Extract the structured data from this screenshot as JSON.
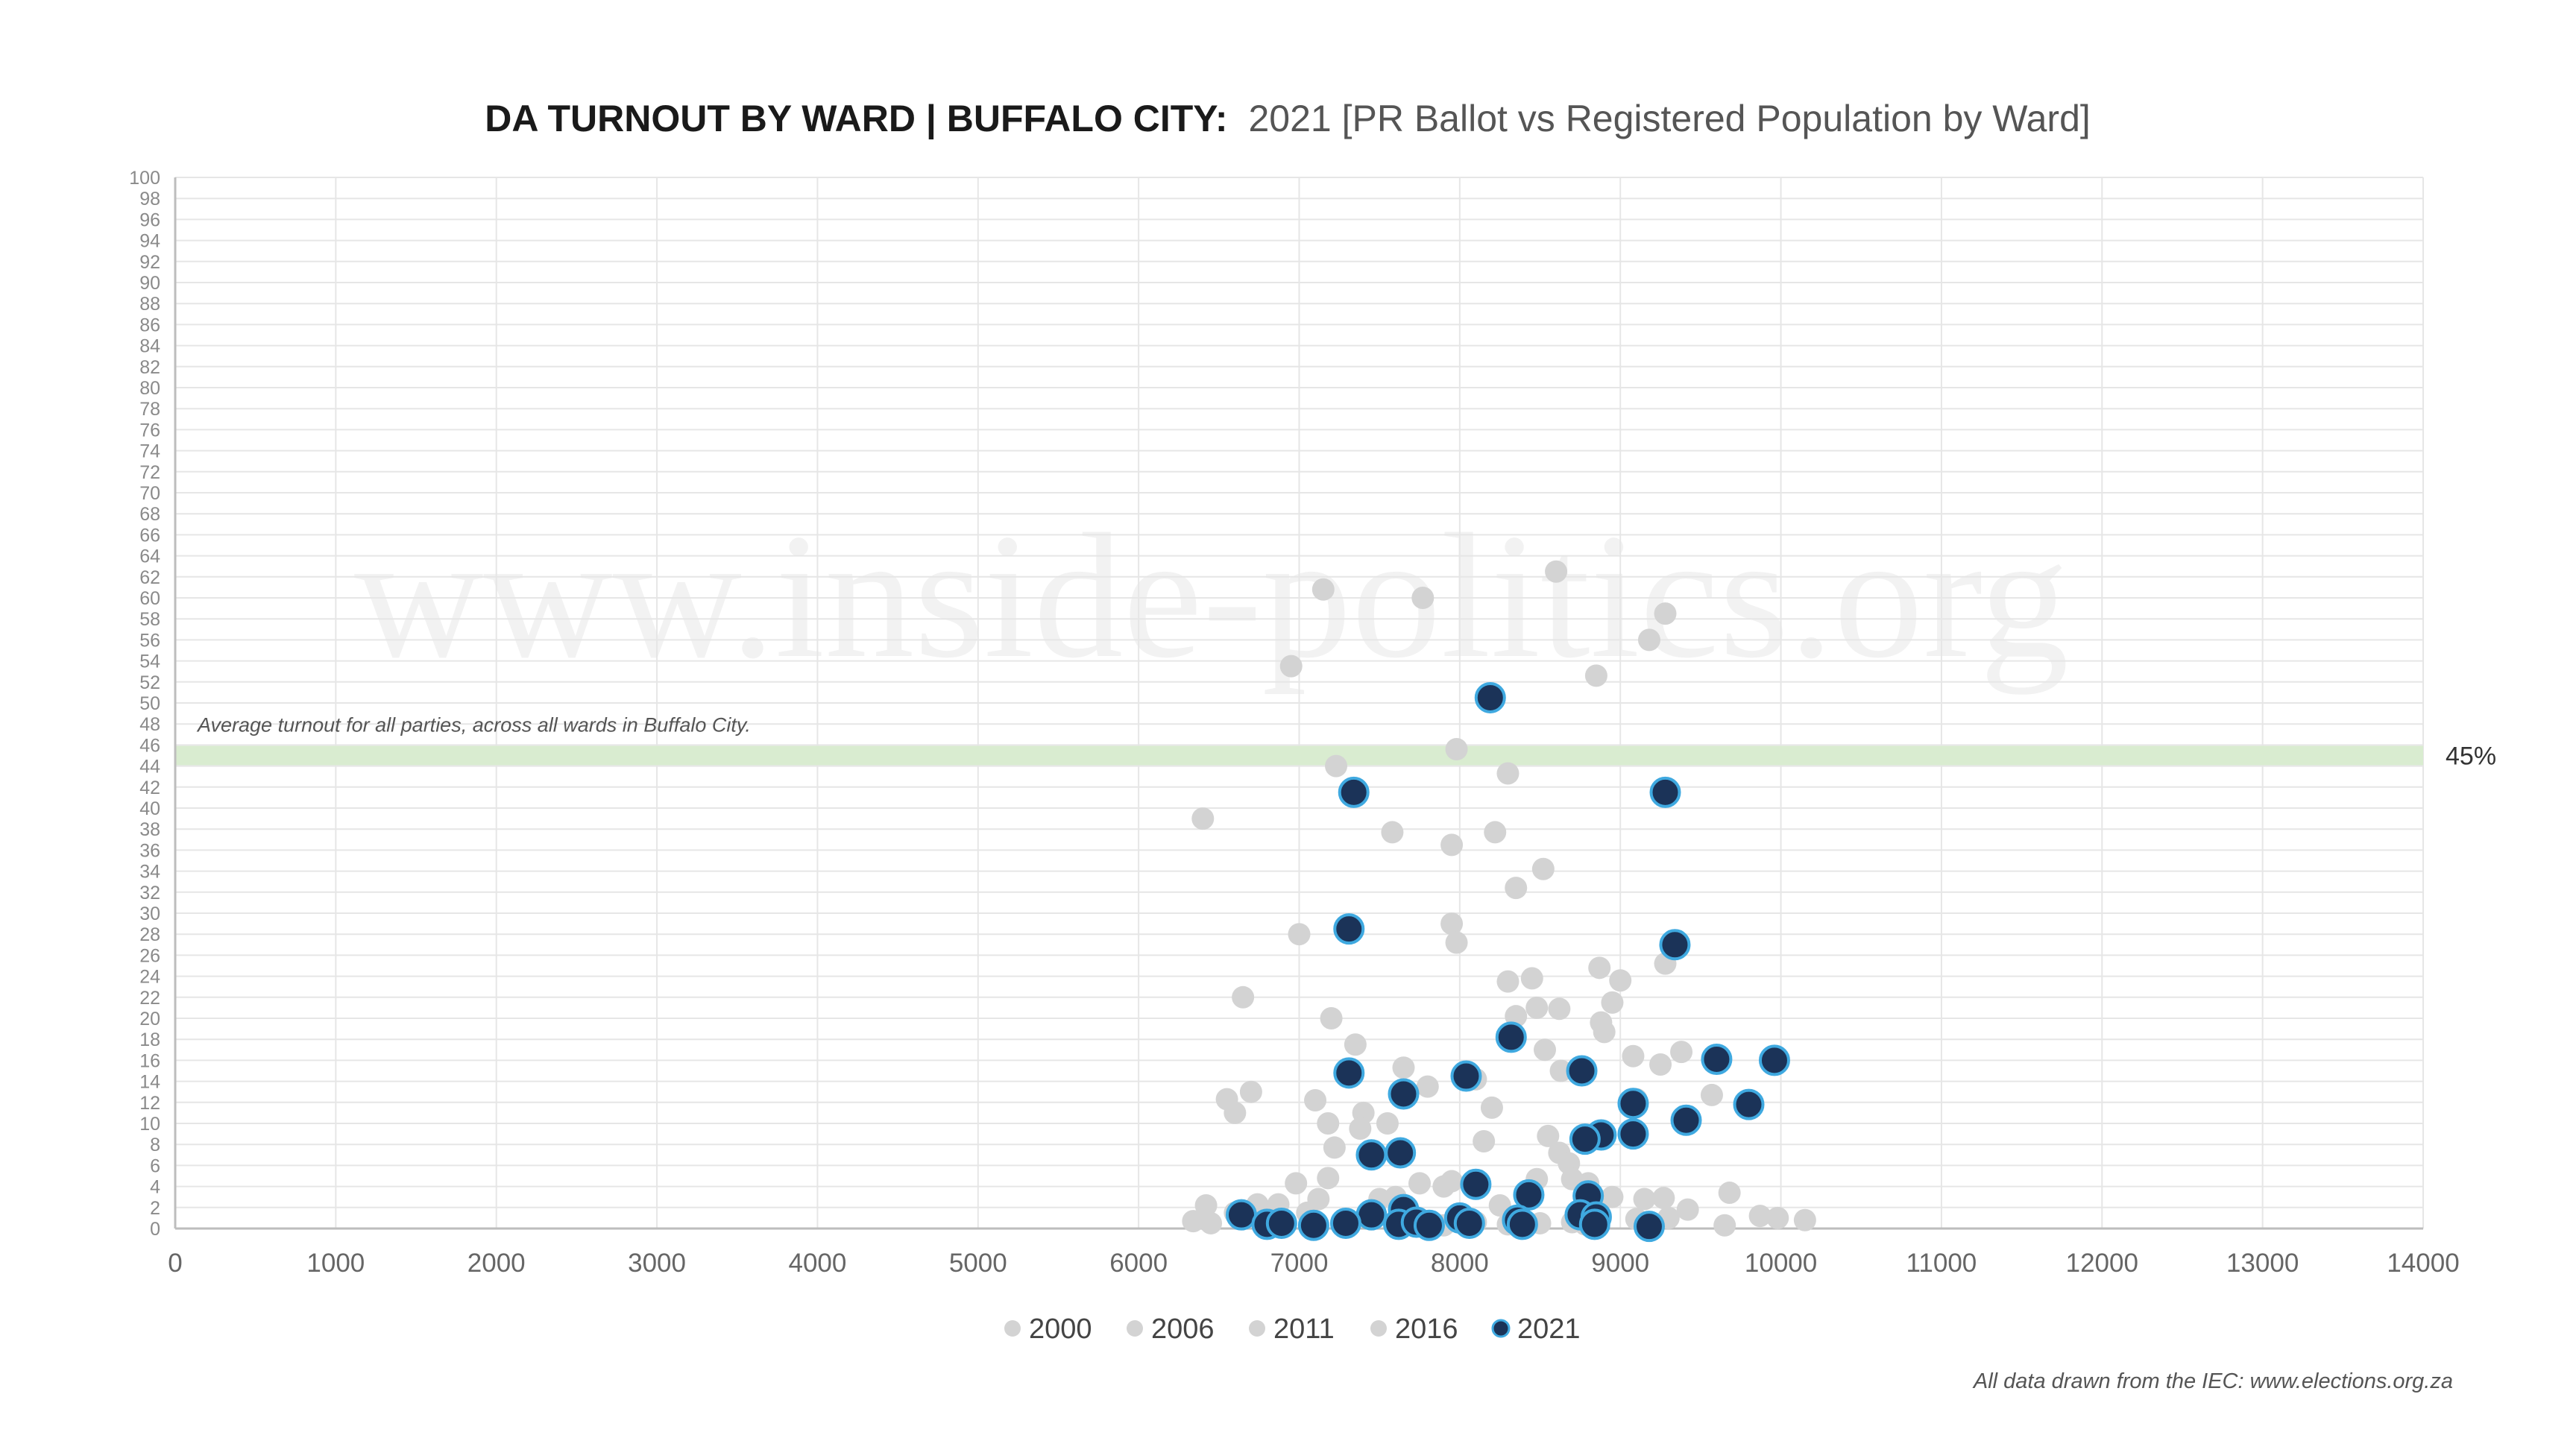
{
  "chart_data": {
    "type": "scatter",
    "title": "DA TURNOUT BY WARD | BUFFALO CITY:",
    "subtitle": "2021 [PR Ballot vs Registered Population by Ward]",
    "xlim": [
      0,
      14000
    ],
    "ylim": [
      0,
      100
    ],
    "x_ticks": [
      "0",
      "1000",
      "2000",
      "3000",
      "4000",
      "5000",
      "6000",
      "7000",
      "8000",
      "9000",
      "10000",
      "11000",
      "12000",
      "13000",
      "14000"
    ],
    "y_ticks": [
      "0",
      "2",
      "4",
      "6",
      "8",
      "10",
      "12",
      "14",
      "16",
      "18",
      "20",
      "22",
      "24",
      "26",
      "28",
      "30",
      "32",
      "34",
      "36",
      "38",
      "40",
      "42",
      "44",
      "46",
      "48",
      "50",
      "52",
      "54",
      "56",
      "58",
      "60",
      "62",
      "64",
      "66",
      "68",
      "70",
      "72",
      "74",
      "76",
      "78",
      "80",
      "82",
      "84",
      "86",
      "88",
      "90",
      "92",
      "94",
      "96",
      "98",
      "100"
    ],
    "grid": true,
    "legend_position": "bottom",
    "watermark": "www.inside-politics.org",
    "reference_line": {
      "value": 45,
      "label": "45%",
      "note": "Average turnout for all parties, across all wards in Buffalo City.",
      "color": "#d9ecd0"
    },
    "source": "All data drawn from the IEC: www.elections.org.za",
    "series": [
      {
        "name": "2000",
        "color": "#d3d3d3",
        "points": [
          [
            6400,
            39
          ],
          [
            6420,
            2.2
          ],
          [
            6450,
            0.5
          ]
        ]
      },
      {
        "name": "2006",
        "color": "#d3d3d3",
        "points": [
          [
            6550,
            12.3
          ],
          [
            6600,
            11
          ],
          [
            6700,
            13
          ],
          [
            6650,
            22
          ]
        ]
      },
      {
        "name": "2011",
        "color": "#d3d3d3",
        "points": [
          [
            6950,
            53.5
          ],
          [
            7150,
            60.8
          ],
          [
            7770,
            60
          ],
          [
            7230,
            44
          ],
          [
            7000,
            28
          ]
        ]
      },
      {
        "name": "2016",
        "color": "#d3d3d3",
        "points": [
          [
            7580,
            37.7
          ],
          [
            7950,
            36.5
          ],
          [
            7980,
            45.6
          ],
          [
            8220,
            37.7
          ],
          [
            8300,
            43.3
          ],
          [
            8600,
            62.5
          ],
          [
            8850,
            52.6
          ],
          [
            9180,
            56
          ],
          [
            9280,
            58.5
          ],
          [
            8350,
            32.4
          ],
          [
            8520,
            34.2
          ],
          [
            7950,
            29
          ],
          [
            7980,
            27.2
          ],
          [
            7200,
            20
          ],
          [
            7350,
            17.5
          ],
          [
            7650,
            15.3
          ],
          [
            7100,
            12.2
          ],
          [
            7180,
            10
          ],
          [
            7220,
            7.7
          ],
          [
            7400,
            11
          ],
          [
            7380,
            9.5
          ],
          [
            7550,
            10
          ],
          [
            7800,
            13.5
          ],
          [
            8100,
            14.2
          ],
          [
            8200,
            11.5
          ],
          [
            8300,
            23.5
          ],
          [
            8450,
            23.8
          ],
          [
            8350,
            20.2
          ],
          [
            8480,
            21
          ],
          [
            8620,
            20.9
          ],
          [
            8530,
            17
          ],
          [
            8630,
            15
          ],
          [
            8870,
            24.8
          ],
          [
            9000,
            23.6
          ],
          [
            8950,
            21.5
          ],
          [
            8880,
            19.6
          ],
          [
            8900,
            18.7
          ],
          [
            9080,
            16.4
          ],
          [
            9250,
            15.6
          ],
          [
            9380,
            16.8
          ],
          [
            9100,
            12.3
          ],
          [
            9570,
            12.7
          ],
          [
            9280,
            25.2
          ],
          [
            8550,
            8.8
          ],
          [
            8620,
            7.2
          ],
          [
            8680,
            6.2
          ],
          [
            8800,
            4.3
          ],
          [
            8700,
            4.7
          ],
          [
            8480,
            4.7
          ],
          [
            8250,
            2.2
          ],
          [
            8150,
            8.3
          ],
          [
            7950,
            4.5
          ],
          [
            7900,
            4
          ],
          [
            7750,
            4.3
          ],
          [
            7600,
            3
          ],
          [
            7500,
            2.8
          ],
          [
            7120,
            2.8
          ],
          [
            7180,
            4.8
          ],
          [
            6980,
            4.3
          ],
          [
            6870,
            2.3
          ],
          [
            6740,
            2.3
          ],
          [
            6600,
            1.5
          ],
          [
            6340,
            0.7
          ],
          [
            6820,
            0.6
          ],
          [
            7050,
            1.5
          ],
          [
            7300,
            0.8
          ],
          [
            7650,
            0.5
          ],
          [
            7900,
            0.3
          ],
          [
            8100,
            0.6
          ],
          [
            8300,
            0.4
          ],
          [
            8500,
            0.5
          ],
          [
            8700,
            0.6
          ],
          [
            8950,
            3
          ],
          [
            9150,
            2.8
          ],
          [
            9270,
            2.9
          ],
          [
            9300,
            1
          ],
          [
            9420,
            1.8
          ],
          [
            9680,
            3.4
          ],
          [
            9650,
            0.3
          ],
          [
            9870,
            1.2
          ],
          [
            9980,
            1
          ],
          [
            10150,
            0.8
          ],
          [
            9100,
            0.9
          ],
          [
            8780,
            0.4
          ]
        ]
      },
      {
        "name": "2021",
        "color": "#1b3358",
        "stroke": "#3fa9e0",
        "points": [
          [
            8190,
            50.5
          ],
          [
            7340,
            41.5
          ],
          [
            9280,
            41.5
          ],
          [
            7310,
            28.5
          ],
          [
            9340,
            27
          ],
          [
            8320,
            18.2
          ],
          [
            9600,
            16.1
          ],
          [
            9960,
            16
          ],
          [
            7310,
            14.8
          ],
          [
            8040,
            14.5
          ],
          [
            8760,
            15
          ],
          [
            7650,
            12.8
          ],
          [
            9080,
            11.9
          ],
          [
            9800,
            11.8
          ],
          [
            9410,
            10.3
          ],
          [
            8880,
            8.9
          ],
          [
            8780,
            8.5
          ],
          [
            9080,
            9
          ],
          [
            7450,
            7
          ],
          [
            7630,
            7.2
          ],
          [
            8100,
            4.2
          ],
          [
            8430,
            3.2
          ],
          [
            8800,
            3.1
          ],
          [
            7650,
            1.8
          ],
          [
            8750,
            1.3
          ],
          [
            8850,
            1.1
          ],
          [
            7450,
            1.3
          ],
          [
            8000,
            1
          ],
          [
            8360,
            0.8
          ],
          [
            6640,
            1.3
          ],
          [
            6800,
            0.4
          ],
          [
            6890,
            0.5
          ],
          [
            7090,
            0.3
          ],
          [
            7290,
            0.5
          ],
          [
            7620,
            0.4
          ],
          [
            7730,
            0.6
          ],
          [
            7810,
            0.3
          ],
          [
            8060,
            0.5
          ],
          [
            8390,
            0.4
          ],
          [
            8840,
            0.4
          ],
          [
            9180,
            0.2
          ]
        ]
      }
    ]
  }
}
